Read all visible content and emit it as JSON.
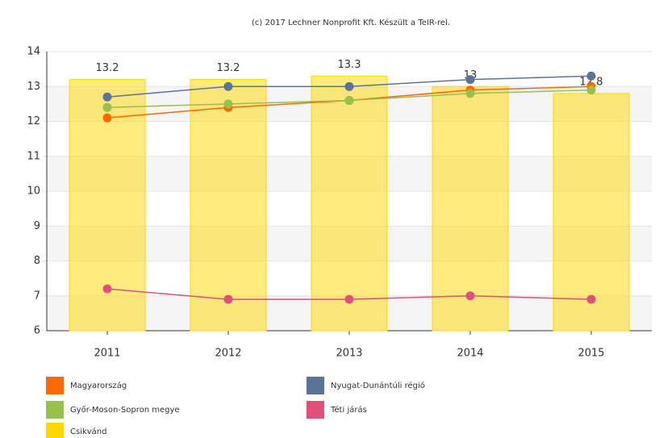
{
  "chart_data": {
    "type": "bar",
    "title": "(c) 2017 Lechner Nonprofit Kft. Készült a TeIR-rel.",
    "categories": [
      "2011",
      "2012",
      "2013",
      "2014",
      "2015"
    ],
    "series": [
      {
        "name": "Magyarország",
        "type": "line",
        "color": "#ff6a00",
        "values": [
          12.1,
          12.4,
          12.6,
          12.9,
          13.0
        ]
      },
      {
        "name": "Nyugat-Dunántúli régió",
        "type": "line",
        "color": "#5b7399",
        "values": [
          12.7,
          13.0,
          13.0,
          13.2,
          13.3
        ]
      },
      {
        "name": "Győr-Moson-Sopron megye",
        "type": "line",
        "color": "#97c14c",
        "values": [
          12.4,
          12.5,
          12.6,
          12.8,
          12.9
        ]
      },
      {
        "name": "Téti járás",
        "type": "line",
        "color": "#e0507a",
        "values": [
          7.2,
          6.9,
          6.9,
          7.0,
          6.9
        ]
      },
      {
        "name": "Csikvánd",
        "type": "bar",
        "color": "#ffd700",
        "values": [
          13.2,
          13.2,
          13.3,
          13,
          12.8
        ]
      }
    ],
    "ylim": [
      6,
      14
    ],
    "yticks": [
      6,
      7,
      8,
      9,
      10,
      11,
      12,
      13,
      14
    ],
    "grid": "alternating-bands"
  }
}
